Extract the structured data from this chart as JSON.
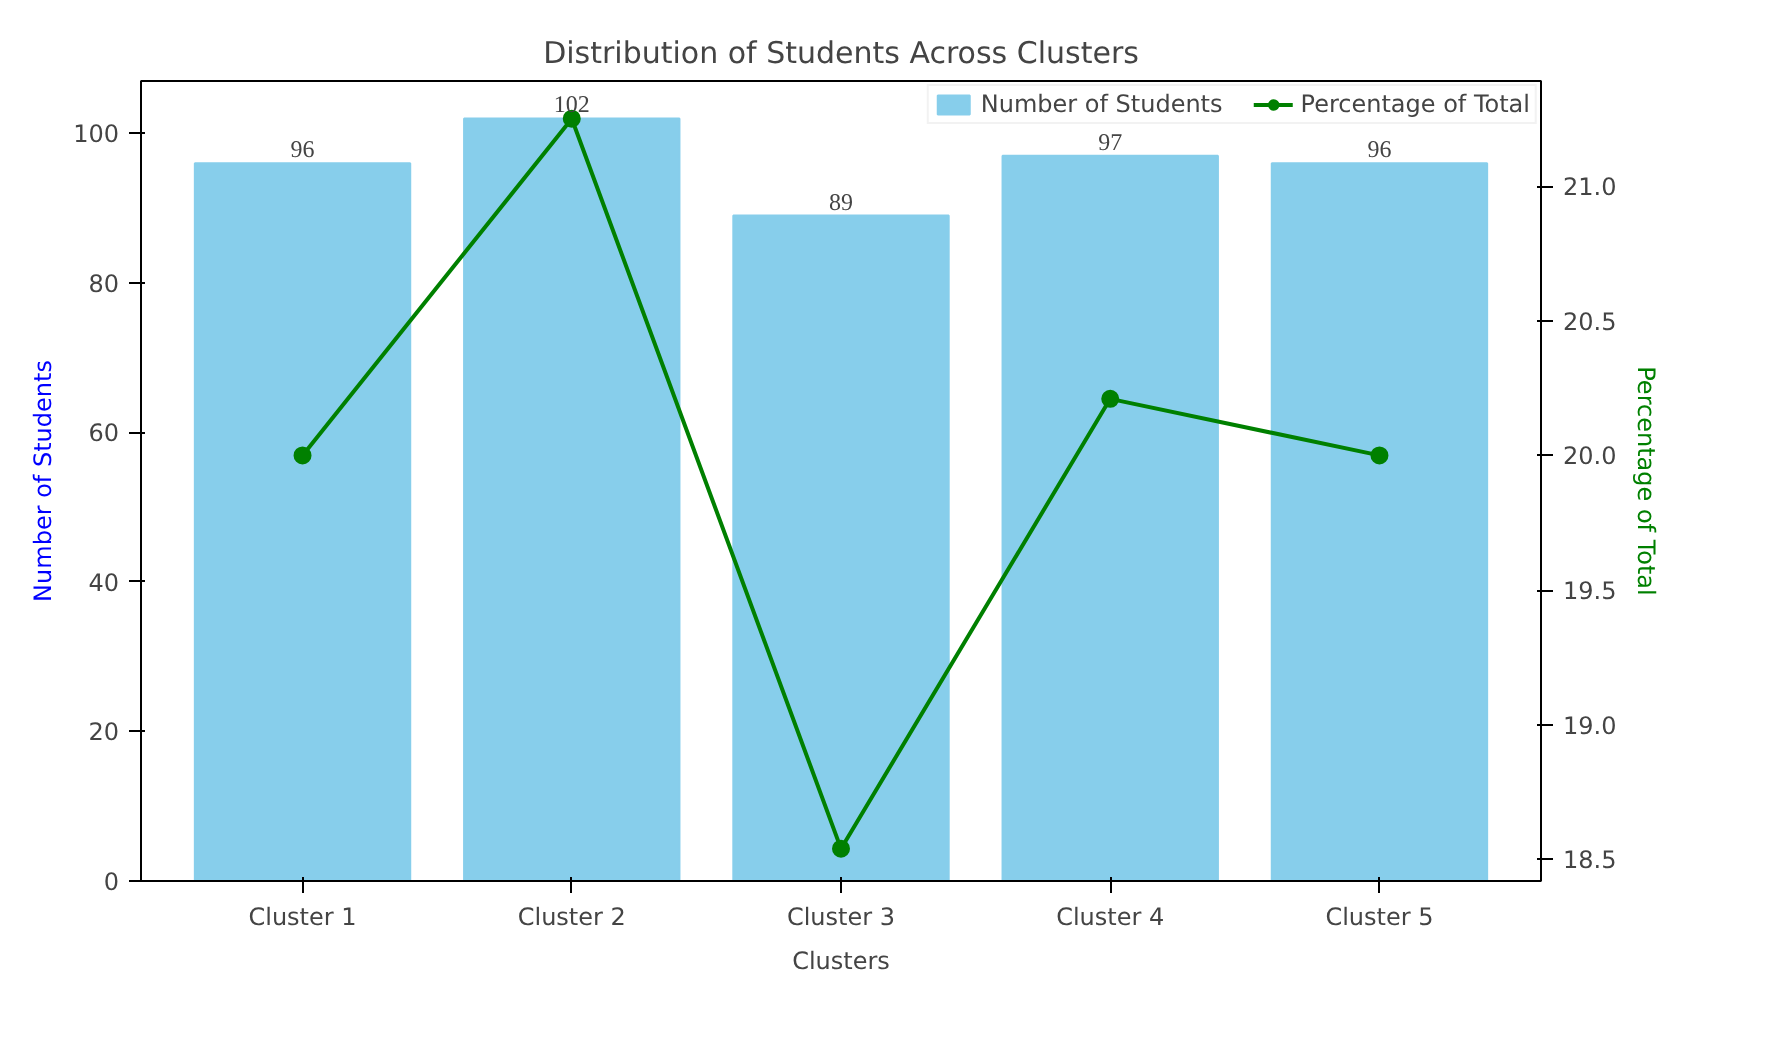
{
  "chart_data": {
    "type": "bar",
    "title": "Distribution of Students Across Clusters",
    "xlabel": "Clusters",
    "ylabel": "Number of Students",
    "y2label": "Percentage of Total",
    "categories": [
      "Cluster 1",
      "Cluster 2",
      "Cluster 3",
      "Cluster 4",
      "Cluster 5"
    ],
    "series": [
      {
        "name": "Number of Students",
        "color": "#87ceeb",
        "values": [
          96,
          102,
          89,
          97,
          96
        ],
        "value_labels": [
          "96",
          "102",
          "89",
          "97",
          "96"
        ]
      },
      {
        "name": "Percentage of Total",
        "type": "line",
        "axis": "y2",
        "color": "#008000",
        "values": [
          20.0,
          21.25,
          18.54,
          20.21,
          20.0
        ]
      }
    ],
    "ylim": [
      0,
      107
    ],
    "yticks": [
      0,
      20,
      40,
      60,
      80,
      100
    ],
    "y2lim": [
      18.42,
      21.39
    ],
    "y2ticks": [
      18.5,
      {
        "value": 19,
        "label": "19.0"
      },
      19.5,
      {
        "value": 20,
        "label": "20.0"
      },
      20.5,
      {
        "value": 21,
        "label": "21.0"
      }
    ],
    "marker": "circle",
    "legend": "top right",
    "grid": false
  }
}
